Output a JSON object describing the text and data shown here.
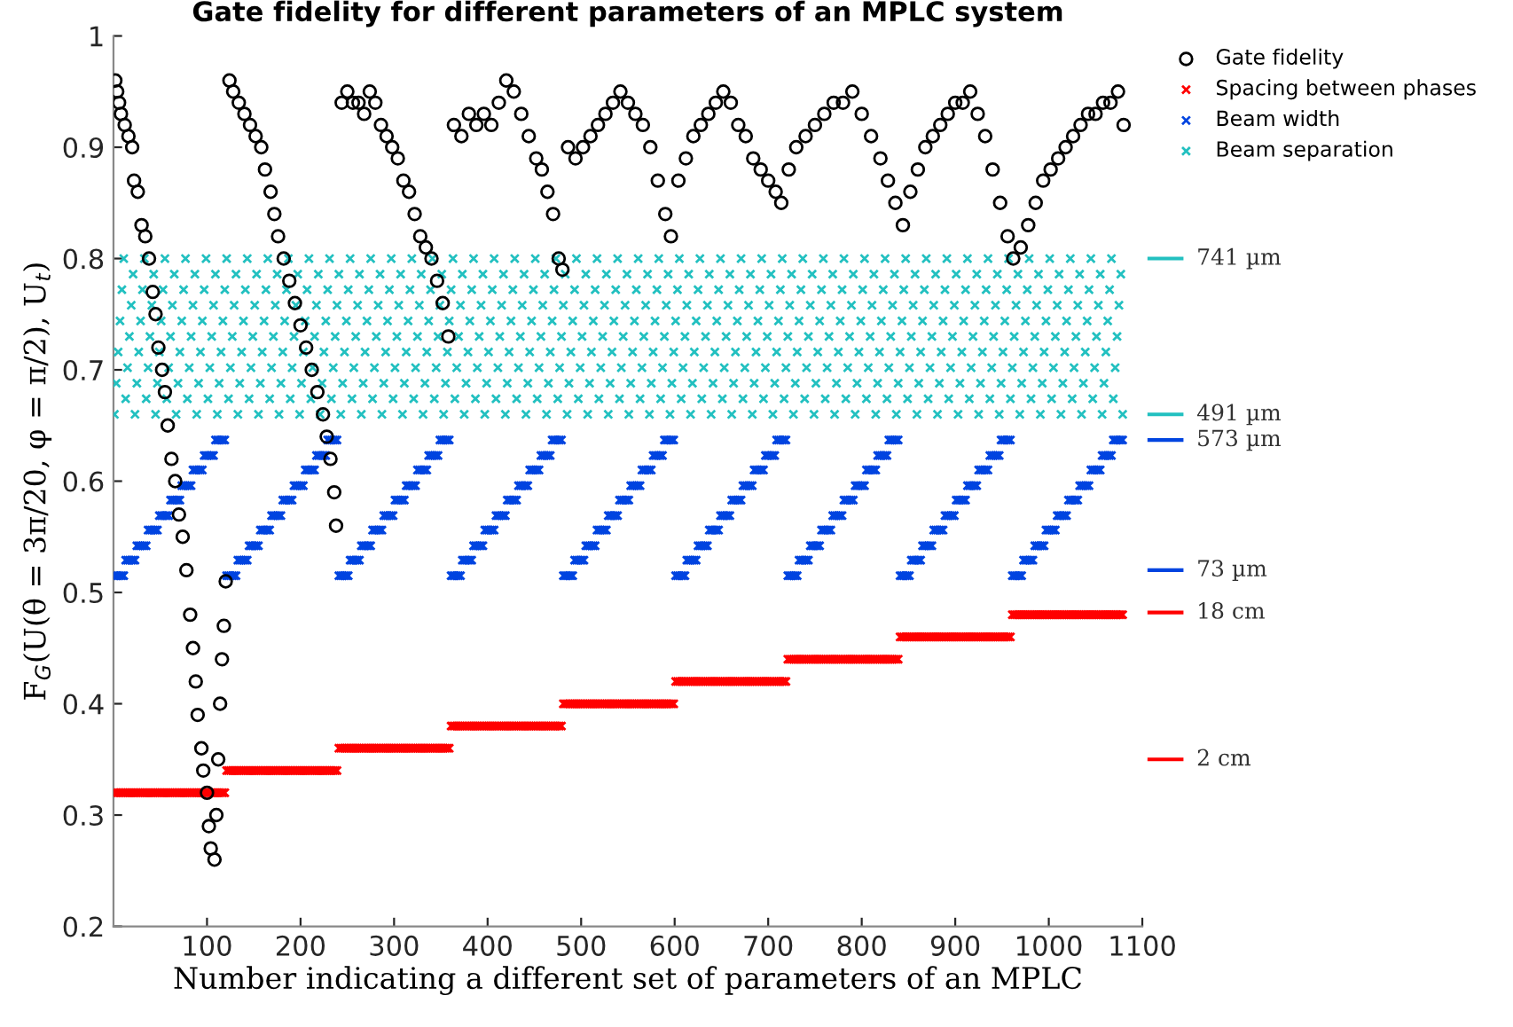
{
  "chart_data": {
    "type": "scatter",
    "title": "Gate fidelity for different parameters of an MPLC system",
    "xlabel": "Number indicating a different set of parameters of an MPLC",
    "ylabel": "F$_{G}$(U(θ = 3π/20, φ = π/2), U$_{t}$)",
    "xlim": [
      0,
      1100
    ],
    "xticks": [
      100,
      200,
      300,
      400,
      500,
      600,
      700,
      800,
      900,
      1000,
      1100
    ],
    "ylim": [
      0.2,
      1
    ],
    "yticks": [
      0.2,
      0.3,
      0.4,
      0.5,
      0.6,
      0.7,
      0.8,
      0.9,
      1
    ],
    "legend": "top right",
    "ref_lines": [
      {
        "axis": "y",
        "value": 0.8,
        "label": "741 µm",
        "color": "#22c0c0"
      },
      {
        "axis": "y",
        "value": 0.66,
        "label": "491 µm",
        "color": "#22c0c0"
      },
      {
        "axis": "y",
        "value": 0.637,
        "label": "573 µm",
        "color": "#0044e0"
      },
      {
        "axis": "y",
        "value": 0.52,
        "label": "73 µm",
        "color": "#0044e0"
      },
      {
        "axis": "y",
        "value": 0.482,
        "label": "18 cm",
        "color": "#ff0000"
      },
      {
        "axis": "y",
        "value": 0.35,
        "label": "2 cm",
        "color": "#ff0000"
      }
    ],
    "x": [
      1,
      3,
      5,
      7,
      9,
      11,
      13,
      15,
      17,
      19,
      21,
      23,
      25,
      27,
      29,
      31,
      33,
      35,
      37,
      39,
      41,
      43,
      45,
      47,
      49,
      51,
      53,
      55,
      57,
      59,
      61,
      63,
      65,
      67,
      69,
      71,
      73,
      75,
      77,
      79,
      81,
      83,
      85,
      87,
      89,
      91,
      93,
      95,
      97,
      99,
      101,
      103,
      105,
      107,
      109,
      111,
      113,
      115,
      117,
      119,
      121,
      123,
      125,
      127,
      129,
      131,
      133,
      135,
      137,
      139,
      141,
      143,
      145,
      147,
      149,
      151,
      153,
      155,
      157,
      159,
      161,
      163,
      165,
      167,
      169,
      171,
      173,
      175,
      177,
      179,
      181,
      183,
      185,
      187,
      189,
      191,
      193,
      195,
      197,
      199,
      201,
      203,
      205,
      207,
      209,
      211,
      213,
      215,
      217,
      219,
      221,
      223,
      225,
      227,
      229,
      231,
      233,
      235,
      237,
      239,
      241,
      243,
      245,
      247,
      249,
      251,
      253,
      255,
      257,
      259,
      261,
      263,
      265,
      267,
      269,
      271,
      273,
      275,
      277,
      279,
      281,
      283,
      285,
      287,
      289,
      291,
      293,
      295,
      297,
      299,
      301,
      303,
      305,
      307,
      309,
      311,
      313,
      315,
      317,
      319,
      321,
      323,
      325,
      327,
      329,
      331,
      333,
      335,
      337,
      339,
      341,
      343,
      345,
      347,
      349,
      351,
      353,
      355,
      357,
      359,
      361,
      363,
      365,
      367,
      369,
      371,
      373,
      375,
      377,
      379,
      381,
      383,
      385,
      387,
      389,
      391,
      393,
      395,
      397,
      399,
      401,
      403,
      405,
      407,
      409,
      411,
      413,
      415,
      417,
      419,
      421,
      423,
      425,
      427,
      429,
      431,
      433,
      435,
      437,
      439,
      441,
      443,
      445,
      447,
      449,
      451,
      453,
      455,
      457,
      459,
      461,
      463,
      465,
      467,
      469,
      471,
      473,
      475,
      477,
      479,
      481,
      483,
      485,
      487,
      489,
      491,
      493,
      495,
      497,
      499,
      501,
      503,
      505,
      507,
      509,
      511,
      513,
      515,
      517,
      519,
      521,
      523,
      525,
      527,
      529,
      531,
      533,
      535,
      537,
      539,
      541,
      543,
      545,
      547,
      549,
      551,
      553,
      555,
      557,
      559,
      561,
      563,
      565,
      567,
      569,
      571,
      573,
      575,
      577,
      579,
      581,
      583,
      585,
      587,
      589,
      591,
      593,
      595,
      597,
      599,
      601,
      603,
      605,
      607,
      609,
      611,
      613,
      615,
      617,
      619,
      621,
      623,
      625,
      627,
      629,
      631,
      633,
      635,
      637,
      639,
      641,
      643,
      645,
      647,
      649,
      651,
      653,
      655,
      657,
      659,
      661,
      663,
      665,
      667,
      669,
      671,
      673,
      675,
      677,
      679,
      681,
      683,
      685,
      687,
      689,
      691,
      693,
      695,
      697,
      699,
      701,
      703,
      705,
      707,
      709,
      711,
      713,
      715,
      717,
      719,
      721,
      723,
      725,
      727,
      729,
      731,
      733,
      735,
      737,
      739,
      741,
      743,
      745,
      747,
      749,
      751,
      753,
      755,
      757,
      759,
      761,
      763,
      765,
      767,
      769,
      771,
      773,
      775,
      777,
      779,
      781,
      783,
      785,
      787,
      789,
      791,
      793,
      795,
      797,
      799,
      801,
      803,
      805,
      807,
      809,
      811,
      813,
      815,
      817,
      819,
      821,
      823,
      825,
      827,
      829,
      831,
      833,
      835,
      837,
      839,
      841,
      843,
      845,
      847,
      849,
      851,
      853,
      855,
      857,
      859,
      861,
      863,
      865,
      867,
      869,
      871,
      873,
      875,
      877,
      879,
      881,
      883,
      885,
      887,
      889,
      891,
      893,
      895,
      897,
      899,
      901,
      903,
      905,
      907,
      909,
      911,
      913,
      915,
      917,
      919,
      921,
      923,
      925,
      927,
      929,
      931,
      933,
      935,
      937,
      939,
      941,
      943,
      945,
      947,
      949,
      951,
      953,
      955,
      957,
      959,
      961,
      963,
      965,
      967,
      969,
      971,
      973,
      975,
      977,
      979,
      981,
      983,
      985,
      987,
      989,
      991,
      993,
      995,
      997,
      999,
      1001,
      1003,
      1005,
      1007,
      1009,
      1011,
      1013,
      1015,
      1017,
      1019,
      1021,
      1023,
      1025,
      1027,
      1029,
      1031,
      1033,
      1035,
      1037,
      1039,
      1041,
      1043,
      1045,
      1047,
      1049,
      1051,
      1053,
      1055,
      1057,
      1059,
      1061,
      1063,
      1065,
      1067,
      1069,
      1071,
      1073,
      1075,
      1077,
      1079
    ],
    "series": [
      {
        "name": "Gate fidelity",
        "color": "#000000",
        "marker": "circle",
        "x": [
          2,
          4,
          6,
          8,
          12,
          16,
          20,
          22,
          26,
          30,
          34,
          38,
          42,
          45,
          48,
          52,
          55,
          58,
          62,
          66,
          70,
          74,
          78,
          82,
          85,
          88,
          90,
          94,
          96,
          100,
          102,
          104,
          108,
          110,
          112,
          114,
          116,
          118,
          120,
          124,
          128,
          134,
          140,
          146,
          152,
          158,
          162,
          168,
          172,
          176,
          182,
          188,
          194,
          200,
          206,
          212,
          218,
          224,
          228,
          232,
          236,
          238,
          244,
          250,
          256,
          262,
          268,
          274,
          280,
          286,
          292,
          298,
          304,
          310,
          316,
          322,
          328,
          334,
          340,
          346,
          352,
          358,
          364,
          372,
          380,
          388,
          396,
          404,
          412,
          420,
          428,
          436,
          444,
          452,
          458,
          464,
          470,
          476,
          480,
          486,
          494,
          502,
          510,
          518,
          526,
          534,
          542,
          550,
          558,
          566,
          574,
          582,
          590,
          596,
          604,
          612,
          620,
          628,
          636,
          644,
          652,
          660,
          668,
          676,
          684,
          692,
          700,
          708,
          714,
          722,
          730,
          740,
          750,
          760,
          770,
          780,
          790,
          800,
          810,
          820,
          828,
          836,
          844,
          852,
          860,
          868,
          876,
          884,
          892,
          900,
          908,
          916,
          924,
          932,
          940,
          948,
          956,
          962,
          970,
          978,
          986,
          994,
          1002,
          1010,
          1018,
          1026,
          1034,
          1042,
          1050,
          1058,
          1066,
          1074,
          1080
        ],
        "values": [
          0.96,
          0.95,
          0.94,
          0.93,
          0.92,
          0.91,
          0.9,
          0.87,
          0.86,
          0.83,
          0.82,
          0.8,
          0.77,
          0.75,
          0.72,
          0.7,
          0.68,
          0.65,
          0.62,
          0.6,
          0.57,
          0.55,
          0.52,
          0.48,
          0.45,
          0.42,
          0.39,
          0.36,
          0.34,
          0.32,
          0.29,
          0.27,
          0.26,
          0.3,
          0.35,
          0.4,
          0.44,
          0.47,
          0.51,
          0.96,
          0.95,
          0.94,
          0.93,
          0.92,
          0.91,
          0.9,
          0.88,
          0.86,
          0.84,
          0.82,
          0.8,
          0.78,
          0.76,
          0.74,
          0.72,
          0.7,
          0.68,
          0.66,
          0.64,
          0.62,
          0.59,
          0.56,
          0.94,
          0.95,
          0.94,
          0.94,
          0.93,
          0.95,
          0.94,
          0.92,
          0.91,
          0.9,
          0.89,
          0.87,
          0.86,
          0.84,
          0.82,
          0.81,
          0.8,
          0.78,
          0.76,
          0.73,
          0.92,
          0.91,
          0.93,
          0.92,
          0.93,
          0.92,
          0.94,
          0.96,
          0.95,
          0.93,
          0.91,
          0.89,
          0.88,
          0.86,
          0.84,
          0.8,
          0.79,
          0.9,
          0.89,
          0.9,
          0.91,
          0.92,
          0.93,
          0.94,
          0.95,
          0.94,
          0.93,
          0.92,
          0.9,
          0.87,
          0.84,
          0.82,
          0.87,
          0.89,
          0.91,
          0.92,
          0.93,
          0.94,
          0.95,
          0.94,
          0.92,
          0.91,
          0.89,
          0.88,
          0.87,
          0.86,
          0.85,
          0.88,
          0.9,
          0.91,
          0.92,
          0.93,
          0.94,
          0.94,
          0.95,
          0.93,
          0.91,
          0.89,
          0.87,
          0.85,
          0.83,
          0.86,
          0.88,
          0.9,
          0.91,
          0.92,
          0.93,
          0.94,
          0.94,
          0.95,
          0.93,
          0.91,
          0.88,
          0.85,
          0.82,
          0.8,
          0.81,
          0.83,
          0.85,
          0.87,
          0.88,
          0.89,
          0.9,
          0.91,
          0.92,
          0.93,
          0.93,
          0.94,
          0.94,
          0.95,
          0.92
        ]
      },
      {
        "name": "Spacing between phases",
        "color": "#ff0000",
        "marker": "cross",
        "values": [
          0.32,
          0.32,
          0.32,
          0.32,
          0.32,
          0.32,
          0.32,
          0.32,
          0.32,
          0.32,
          0.32,
          0.32,
          0.32,
          0.32,
          0.32,
          0.32,
          0.32,
          0.32,
          0.32,
          0.32,
          0.32,
          0.32,
          0.32,
          0.32,
          0.32,
          0.32,
          0.32,
          0.32,
          0.32,
          0.32,
          0.32,
          0.32,
          0.32,
          0.32,
          0.32,
          0.32,
          0.32,
          0.32,
          0.32,
          0.32,
          0.32,
          0.32,
          0.32,
          0.32,
          0.32,
          0.32,
          0.32,
          0.32,
          0.32,
          0.32,
          0.32,
          0.32,
          0.32,
          0.32,
          0.32,
          0.32,
          0.32,
          0.32,
          0.32,
          0.32,
          0.34,
          0.34,
          0.34,
          0.34,
          0.34,
          0.34,
          0.34,
          0.34,
          0.34,
          0.34,
          0.34,
          0.34,
          0.34,
          0.34,
          0.34,
          0.34,
          0.34,
          0.34,
          0.34,
          0.34,
          0.34,
          0.34,
          0.34,
          0.34,
          0.34,
          0.34,
          0.34,
          0.34,
          0.34,
          0.34,
          0.34,
          0.34,
          0.34,
          0.34,
          0.34,
          0.34,
          0.34,
          0.34,
          0.34,
          0.34,
          0.34,
          0.34,
          0.34,
          0.34,
          0.34,
          0.34,
          0.34,
          0.34,
          0.34,
          0.34,
          0.34,
          0.34,
          0.34,
          0.34,
          0.34,
          0.34,
          0.34,
          0.34,
          0.34,
          0.34,
          0.36,
          0.36,
          0.36,
          0.36,
          0.36,
          0.36,
          0.36,
          0.36,
          0.36,
          0.36,
          0.36,
          0.36,
          0.36,
          0.36,
          0.36,
          0.36,
          0.36,
          0.36,
          0.36,
          0.36,
          0.36,
          0.36,
          0.36,
          0.36,
          0.36,
          0.36,
          0.36,
          0.36,
          0.36,
          0.36,
          0.36,
          0.36,
          0.36,
          0.36,
          0.36,
          0.36,
          0.36,
          0.36,
          0.36,
          0.36,
          0.36,
          0.36,
          0.36,
          0.36,
          0.36,
          0.36,
          0.36,
          0.36,
          0.36,
          0.36,
          0.36,
          0.36,
          0.36,
          0.36,
          0.36,
          0.36,
          0.36,
          0.36,
          0.36,
          0.36,
          0.38,
          0.38,
          0.38,
          0.38,
          0.38,
          0.38,
          0.38,
          0.38,
          0.38,
          0.38,
          0.38,
          0.38,
          0.38,
          0.38,
          0.38,
          0.38,
          0.38,
          0.38,
          0.38,
          0.38,
          0.38,
          0.38,
          0.38,
          0.38,
          0.38,
          0.38,
          0.38,
          0.38,
          0.38,
          0.38,
          0.38,
          0.38,
          0.38,
          0.38,
          0.38,
          0.38,
          0.38,
          0.38,
          0.38,
          0.38,
          0.38,
          0.38,
          0.38,
          0.38,
          0.38,
          0.38,
          0.38,
          0.38,
          0.38,
          0.38,
          0.38,
          0.38,
          0.38,
          0.38,
          0.38,
          0.38,
          0.38,
          0.38,
          0.38,
          0.38,
          0.4,
          0.4,
          0.4,
          0.4,
          0.4,
          0.4,
          0.4,
          0.4,
          0.4,
          0.4,
          0.4,
          0.4,
          0.4,
          0.4,
          0.4,
          0.4,
          0.4,
          0.4,
          0.4,
          0.4,
          0.4,
          0.4,
          0.4,
          0.4,
          0.4,
          0.4,
          0.4,
          0.4,
          0.4,
          0.4,
          0.4,
          0.4,
          0.4,
          0.4,
          0.4,
          0.4,
          0.4,
          0.4,
          0.4,
          0.4,
          0.4,
          0.4,
          0.4,
          0.4,
          0.4,
          0.4,
          0.4,
          0.4,
          0.4,
          0.4,
          0.4,
          0.4,
          0.4,
          0.4,
          0.4,
          0.4,
          0.4,
          0.4,
          0.4,
          0.4,
          0.42,
          0.42,
          0.42,
          0.42,
          0.42,
          0.42,
          0.42,
          0.42,
          0.42,
          0.42,
          0.42,
          0.42,
          0.42,
          0.42,
          0.42,
          0.42,
          0.42,
          0.42,
          0.42,
          0.42,
          0.42,
          0.42,
          0.42,
          0.42,
          0.42,
          0.42,
          0.42,
          0.42,
          0.42,
          0.42,
          0.42,
          0.42,
          0.42,
          0.42,
          0.42,
          0.42,
          0.42,
          0.42,
          0.42,
          0.42,
          0.42,
          0.42,
          0.42,
          0.42,
          0.42,
          0.42,
          0.42,
          0.42,
          0.42,
          0.42,
          0.42,
          0.42,
          0.42,
          0.42,
          0.42,
          0.42,
          0.42,
          0.42,
          0.42,
          0.42,
          0.44,
          0.44,
          0.44,
          0.44,
          0.44,
          0.44,
          0.44,
          0.44,
          0.44,
          0.44,
          0.44,
          0.44,
          0.44,
          0.44,
          0.44,
          0.44,
          0.44,
          0.44,
          0.44,
          0.44,
          0.44,
          0.44,
          0.44,
          0.44,
          0.44,
          0.44,
          0.44,
          0.44,
          0.44,
          0.44,
          0.44,
          0.44,
          0.44,
          0.44,
          0.44,
          0.44,
          0.44,
          0.44,
          0.44,
          0.44,
          0.44,
          0.44,
          0.44,
          0.44,
          0.44,
          0.44,
          0.44,
          0.44,
          0.44,
          0.44,
          0.44,
          0.44,
          0.44,
          0.44,
          0.44,
          0.44,
          0.44,
          0.44,
          0.44,
          0.44,
          0.46,
          0.46,
          0.46,
          0.46,
          0.46,
          0.46,
          0.46,
          0.46,
          0.46,
          0.46,
          0.46,
          0.46,
          0.46,
          0.46,
          0.46,
          0.46,
          0.46,
          0.46,
          0.46,
          0.46,
          0.46,
          0.46,
          0.46,
          0.46,
          0.46,
          0.46,
          0.46,
          0.46,
          0.46,
          0.46,
          0.46,
          0.46,
          0.46,
          0.46,
          0.46,
          0.46,
          0.46,
          0.46,
          0.46,
          0.46,
          0.46,
          0.46,
          0.46,
          0.46,
          0.46,
          0.46,
          0.46,
          0.46,
          0.46,
          0.46,
          0.46,
          0.46,
          0.46,
          0.46,
          0.46,
          0.46,
          0.46,
          0.46,
          0.46,
          0.46,
          0.48,
          0.48,
          0.48,
          0.48,
          0.48,
          0.48,
          0.48,
          0.48,
          0.48,
          0.48,
          0.48,
          0.48,
          0.48,
          0.48,
          0.48,
          0.48,
          0.48,
          0.48,
          0.48,
          0.48,
          0.48,
          0.48,
          0.48,
          0.48,
          0.48,
          0.48,
          0.48,
          0.48,
          0.48,
          0.48,
          0.48,
          0.48,
          0.48,
          0.48,
          0.48,
          0.48,
          0.48,
          0.48,
          0.48,
          0.48,
          0.48,
          0.48,
          0.48,
          0.48,
          0.48,
          0.48,
          0.48,
          0.48,
          0.48,
          0.48,
          0.48,
          0.48,
          0.48,
          0.48,
          0.48,
          0.48,
          0.48,
          0.48,
          0.48,
          0.48
        ]
      },
      {
        "name": "Beam width",
        "color": "#0044e0",
        "marker": "cross",
        "values": [
          0.515,
          0.515,
          0.515,
          0.515,
          0.515,
          0.515,
          0.529,
          0.529,
          0.529,
          0.529,
          0.529,
          0.529,
          0.542,
          0.542,
          0.542,
          0.542,
          0.542,
          0.542,
          0.556,
          0.556,
          0.556,
          0.556,
          0.556,
          0.556,
          0.569,
          0.569,
          0.569,
          0.569,
          0.569,
          0.569,
          0.583,
          0.583,
          0.583,
          0.583,
          0.583,
          0.583,
          0.596,
          0.596,
          0.596,
          0.596,
          0.596,
          0.596,
          0.61,
          0.61,
          0.61,
          0.61,
          0.61,
          0.61,
          0.623,
          0.623,
          0.623,
          0.623,
          0.623,
          0.623,
          0.637,
          0.637,
          0.637,
          0.637,
          0.637,
          0.637,
          0.515,
          0.515,
          0.515,
          0.515,
          0.515,
          0.515,
          0.529,
          0.529,
          0.529,
          0.529,
          0.529,
          0.529,
          0.542,
          0.542,
          0.542,
          0.542,
          0.542,
          0.542,
          0.556,
          0.556,
          0.556,
          0.556,
          0.556,
          0.556,
          0.569,
          0.569,
          0.569,
          0.569,
          0.569,
          0.569,
          0.583,
          0.583,
          0.583,
          0.583,
          0.583,
          0.583,
          0.596,
          0.596,
          0.596,
          0.596,
          0.596,
          0.596,
          0.61,
          0.61,
          0.61,
          0.61,
          0.61,
          0.61,
          0.623,
          0.623,
          0.623,
          0.623,
          0.623,
          0.623,
          0.637,
          0.637,
          0.637,
          0.637,
          0.637,
          0.637,
          0.515,
          0.515,
          0.515,
          0.515,
          0.515,
          0.515,
          0.529,
          0.529,
          0.529,
          0.529,
          0.529,
          0.529,
          0.542,
          0.542,
          0.542,
          0.542,
          0.542,
          0.542,
          0.556,
          0.556,
          0.556,
          0.556,
          0.556,
          0.556,
          0.569,
          0.569,
          0.569,
          0.569,
          0.569,
          0.569,
          0.583,
          0.583,
          0.583,
          0.583,
          0.583,
          0.583,
          0.596,
          0.596,
          0.596,
          0.596,
          0.596,
          0.596,
          0.61,
          0.61,
          0.61,
          0.61,
          0.61,
          0.61,
          0.623,
          0.623,
          0.623,
          0.623,
          0.623,
          0.623,
          0.637,
          0.637,
          0.637,
          0.637,
          0.637,
          0.637,
          0.515,
          0.515,
          0.515,
          0.515,
          0.515,
          0.515,
          0.529,
          0.529,
          0.529,
          0.529,
          0.529,
          0.529,
          0.542,
          0.542,
          0.542,
          0.542,
          0.542,
          0.542,
          0.556,
          0.556,
          0.556,
          0.556,
          0.556,
          0.556,
          0.569,
          0.569,
          0.569,
          0.569,
          0.569,
          0.569,
          0.583,
          0.583,
          0.583,
          0.583,
          0.583,
          0.583,
          0.596,
          0.596,
          0.596,
          0.596,
          0.596,
          0.596,
          0.61,
          0.61,
          0.61,
          0.61,
          0.61,
          0.61,
          0.623,
          0.623,
          0.623,
          0.623,
          0.623,
          0.623,
          0.637,
          0.637,
          0.637,
          0.637,
          0.637,
          0.637,
          0.515,
          0.515,
          0.515,
          0.515,
          0.515,
          0.515,
          0.529,
          0.529,
          0.529,
          0.529,
          0.529,
          0.529,
          0.542,
          0.542,
          0.542,
          0.542,
          0.542,
          0.542,
          0.556,
          0.556,
          0.556,
          0.556,
          0.556,
          0.556,
          0.569,
          0.569,
          0.569,
          0.569,
          0.569,
          0.569,
          0.583,
          0.583,
          0.583,
          0.583,
          0.583,
          0.583,
          0.596,
          0.596,
          0.596,
          0.596,
          0.596,
          0.596,
          0.61,
          0.61,
          0.61,
          0.61,
          0.61,
          0.61,
          0.623,
          0.623,
          0.623,
          0.623,
          0.623,
          0.623,
          0.637,
          0.637,
          0.637,
          0.637,
          0.637,
          0.637,
          0.515,
          0.515,
          0.515,
          0.515,
          0.515,
          0.515,
          0.529,
          0.529,
          0.529,
          0.529,
          0.529,
          0.529,
          0.542,
          0.542,
          0.542,
          0.542,
          0.542,
          0.542,
          0.556,
          0.556,
          0.556,
          0.556,
          0.556,
          0.556,
          0.569,
          0.569,
          0.569,
          0.569,
          0.569,
          0.569,
          0.583,
          0.583,
          0.583,
          0.583,
          0.583,
          0.583,
          0.596,
          0.596,
          0.596,
          0.596,
          0.596,
          0.596,
          0.61,
          0.61,
          0.61,
          0.61,
          0.61,
          0.61,
          0.623,
          0.623,
          0.623,
          0.623,
          0.623,
          0.623,
          0.637,
          0.637,
          0.637,
          0.637,
          0.637,
          0.637,
          0.515,
          0.515,
          0.515,
          0.515,
          0.515,
          0.515,
          0.529,
          0.529,
          0.529,
          0.529,
          0.529,
          0.529,
          0.542,
          0.542,
          0.542,
          0.542,
          0.542,
          0.542,
          0.556,
          0.556,
          0.556,
          0.556,
          0.556,
          0.556,
          0.569,
          0.569,
          0.569,
          0.569,
          0.569,
          0.569,
          0.583,
          0.583,
          0.583,
          0.583,
          0.583,
          0.583,
          0.596,
          0.596,
          0.596,
          0.596,
          0.596,
          0.596,
          0.61,
          0.61,
          0.61,
          0.61,
          0.61,
          0.61,
          0.623,
          0.623,
          0.623,
          0.623,
          0.623,
          0.623,
          0.637,
          0.637,
          0.637,
          0.637,
          0.637,
          0.637,
          0.515,
          0.515,
          0.515,
          0.515,
          0.515,
          0.515,
          0.529,
          0.529,
          0.529,
          0.529,
          0.529,
          0.529,
          0.542,
          0.542,
          0.542,
          0.542,
          0.542,
          0.542,
          0.556,
          0.556,
          0.556,
          0.556,
          0.556,
          0.556,
          0.569,
          0.569,
          0.569,
          0.569,
          0.569,
          0.569,
          0.583,
          0.583,
          0.583,
          0.583,
          0.583,
          0.583,
          0.596,
          0.596,
          0.596,
          0.596,
          0.596,
          0.596,
          0.61,
          0.61,
          0.61,
          0.61,
          0.61,
          0.61,
          0.623,
          0.623,
          0.623,
          0.623,
          0.623,
          0.623,
          0.637,
          0.637,
          0.637,
          0.637,
          0.637,
          0.637,
          0.515,
          0.515,
          0.515,
          0.515,
          0.515,
          0.515,
          0.529,
          0.529,
          0.529,
          0.529,
          0.529,
          0.529,
          0.542,
          0.542,
          0.542,
          0.542,
          0.542,
          0.542,
          0.556,
          0.556,
          0.556,
          0.556,
          0.556,
          0.556,
          0.569,
          0.569,
          0.569,
          0.569,
          0.569,
          0.569,
          0.583,
          0.583,
          0.583,
          0.583,
          0.583,
          0.583,
          0.596,
          0.596,
          0.596,
          0.596,
          0.596,
          0.596,
          0.61,
          0.61,
          0.61,
          0.61,
          0.61,
          0.61,
          0.623,
          0.623,
          0.623,
          0.623,
          0.623,
          0.623,
          0.637,
          0.637,
          0.637,
          0.637,
          0.637,
          0.637
        ]
      },
      {
        "name": "Beam separation",
        "color": "#22c0c0",
        "marker": "cross",
        "values": [
          0.66,
          0.688,
          0.716,
          0.744,
          0.772,
          0.8,
          0.674,
          0.702,
          0.73,
          0.758,
          0.786,
          0.66,
          0.688,
          0.716,
          0.744,
          0.772,
          0.8,
          0.674,
          0.702,
          0.73,
          0.758,
          0.786,
          0.66,
          0.688,
          0.716,
          0.744,
          0.772,
          0.8,
          0.674,
          0.702,
          0.73,
          0.758,
          0.786,
          0.66,
          0.688,
          0.716,
          0.744,
          0.772,
          0.8,
          0.674,
          0.702,
          0.73,
          0.758,
          0.786,
          0.66,
          0.688,
          0.716,
          0.744,
          0.772,
          0.8,
          0.674,
          0.702,
          0.73,
          0.758,
          0.786,
          0.66,
          0.688,
          0.716,
          0.744,
          0.772,
          0.8,
          0.674,
          0.702,
          0.73,
          0.758,
          0.786,
          0.66,
          0.688,
          0.716,
          0.744,
          0.772,
          0.8,
          0.674,
          0.702,
          0.73,
          0.758,
          0.786,
          0.66,
          0.688,
          0.716,
          0.744,
          0.772,
          0.8,
          0.674,
          0.702,
          0.73,
          0.758,
          0.786,
          0.66,
          0.688,
          0.716,
          0.744,
          0.772,
          0.8,
          0.674,
          0.702,
          0.73,
          0.758,
          0.786,
          0.66,
          0.688,
          0.716,
          0.744,
          0.772,
          0.8,
          0.674,
          0.702,
          0.73,
          0.758,
          0.786,
          0.66,
          0.688,
          0.716,
          0.744,
          0.772,
          0.8,
          0.674,
          0.702,
          0.73,
          0.758,
          0.786,
          0.66,
          0.688,
          0.716,
          0.744,
          0.772,
          0.8,
          0.674,
          0.702,
          0.73,
          0.758,
          0.786,
          0.66,
          0.688,
          0.716,
          0.744,
          0.772,
          0.8,
          0.674,
          0.702,
          0.73,
          0.758,
          0.786,
          0.66,
          0.688,
          0.716,
          0.744,
          0.772,
          0.8,
          0.674,
          0.702,
          0.73,
          0.758,
          0.786,
          0.66,
          0.688,
          0.716,
          0.744,
          0.772,
          0.8,
          0.674,
          0.702,
          0.73,
          0.758,
          0.786,
          0.66,
          0.688,
          0.716,
          0.744,
          0.772,
          0.8,
          0.674,
          0.702,
          0.73,
          0.758,
          0.786,
          0.66,
          0.688,
          0.716,
          0.744,
          0.772,
          0.8,
          0.674,
          0.702,
          0.73,
          0.758,
          0.786,
          0.66,
          0.688,
          0.716,
          0.744,
          0.772,
          0.8,
          0.674,
          0.702,
          0.73,
          0.758,
          0.786,
          0.66,
          0.688,
          0.716,
          0.744,
          0.772,
          0.8,
          0.674,
          0.702,
          0.73,
          0.758,
          0.786,
          0.66,
          0.688,
          0.716,
          0.744,
          0.772,
          0.8,
          0.674,
          0.702,
          0.73,
          0.758,
          0.786,
          0.66,
          0.688,
          0.716,
          0.744,
          0.772,
          0.8,
          0.674,
          0.702,
          0.73,
          0.758,
          0.786,
          0.66,
          0.688,
          0.716,
          0.744,
          0.772,
          0.8,
          0.674,
          0.702,
          0.73,
          0.758,
          0.786,
          0.66,
          0.688,
          0.716,
          0.744,
          0.772,
          0.8,
          0.674,
          0.702,
          0.73,
          0.758,
          0.786,
          0.66,
          0.688,
          0.716,
          0.744,
          0.772,
          0.8,
          0.674,
          0.702,
          0.73,
          0.758,
          0.786,
          0.66,
          0.688,
          0.716,
          0.744,
          0.772,
          0.8,
          0.674,
          0.702,
          0.73,
          0.758,
          0.786,
          0.66,
          0.688,
          0.716,
          0.744,
          0.772,
          0.8,
          0.674,
          0.702,
          0.73,
          0.758,
          0.786,
          0.66,
          0.688,
          0.716,
          0.744,
          0.772,
          0.8,
          0.674,
          0.702,
          0.73,
          0.758,
          0.786,
          0.66,
          0.688,
          0.716,
          0.744,
          0.772,
          0.8,
          0.674,
          0.702,
          0.73,
          0.758,
          0.786,
          0.66,
          0.688,
          0.716,
          0.744,
          0.772,
          0.8,
          0.674,
          0.702,
          0.73,
          0.758,
          0.786,
          0.66,
          0.688,
          0.716,
          0.744,
          0.772,
          0.8,
          0.674,
          0.702,
          0.73,
          0.758,
          0.786,
          0.66,
          0.688,
          0.716,
          0.744,
          0.772,
          0.8,
          0.674,
          0.702,
          0.73,
          0.758,
          0.786,
          0.66,
          0.688,
          0.716,
          0.744,
          0.772,
          0.8,
          0.674,
          0.702,
          0.73,
          0.758,
          0.786,
          0.66,
          0.688,
          0.716,
          0.744,
          0.772,
          0.8,
          0.674,
          0.702,
          0.73,
          0.758,
          0.786,
          0.66,
          0.688,
          0.716,
          0.744,
          0.772,
          0.8,
          0.674,
          0.702,
          0.73,
          0.758,
          0.786,
          0.66,
          0.688,
          0.716,
          0.744,
          0.772,
          0.8,
          0.674,
          0.702,
          0.73,
          0.758,
          0.786,
          0.66,
          0.688,
          0.716,
          0.744,
          0.772,
          0.8,
          0.674,
          0.702,
          0.73,
          0.758,
          0.786,
          0.66,
          0.688,
          0.716,
          0.744,
          0.772,
          0.8,
          0.674,
          0.702,
          0.73,
          0.758,
          0.786,
          0.66,
          0.688,
          0.716,
          0.744,
          0.772,
          0.8,
          0.674,
          0.702,
          0.73,
          0.758,
          0.786,
          0.66,
          0.688,
          0.716,
          0.744,
          0.772,
          0.8,
          0.674,
          0.702,
          0.73,
          0.758,
          0.786,
          0.66,
          0.688,
          0.716,
          0.744,
          0.772,
          0.8,
          0.674,
          0.702,
          0.73,
          0.758,
          0.786,
          0.66,
          0.688,
          0.716,
          0.744,
          0.772,
          0.8,
          0.674,
          0.702,
          0.73,
          0.758,
          0.786,
          0.66,
          0.688,
          0.716,
          0.744,
          0.772,
          0.8,
          0.674,
          0.702,
          0.73,
          0.758,
          0.786,
          0.66,
          0.688,
          0.716,
          0.744,
          0.772,
          0.8,
          0.674,
          0.702,
          0.73,
          0.758,
          0.786,
          0.66,
          0.688,
          0.716,
          0.744,
          0.772,
          0.8,
          0.674,
          0.702,
          0.73,
          0.758,
          0.786,
          0.66,
          0.688,
          0.716,
          0.744,
          0.772,
          0.8,
          0.674,
          0.702,
          0.73,
          0.758,
          0.786,
          0.66,
          0.688,
          0.716,
          0.744,
          0.772,
          0.8,
          0.674,
          0.702,
          0.73,
          0.758,
          0.786,
          0.66,
          0.688,
          0.716,
          0.744,
          0.772,
          0.8,
          0.674,
          0.702,
          0.73,
          0.758,
          0.786,
          0.66,
          0.688,
          0.716,
          0.744,
          0.772,
          0.8,
          0.674,
          0.702,
          0.73,
          0.758,
          0.786,
          0.66,
          0.688,
          0.716,
          0.744,
          0.772,
          0.8,
          0.674,
          0.702,
          0.73,
          0.758,
          0.786,
          0.66
        ]
      }
    ]
  }
}
